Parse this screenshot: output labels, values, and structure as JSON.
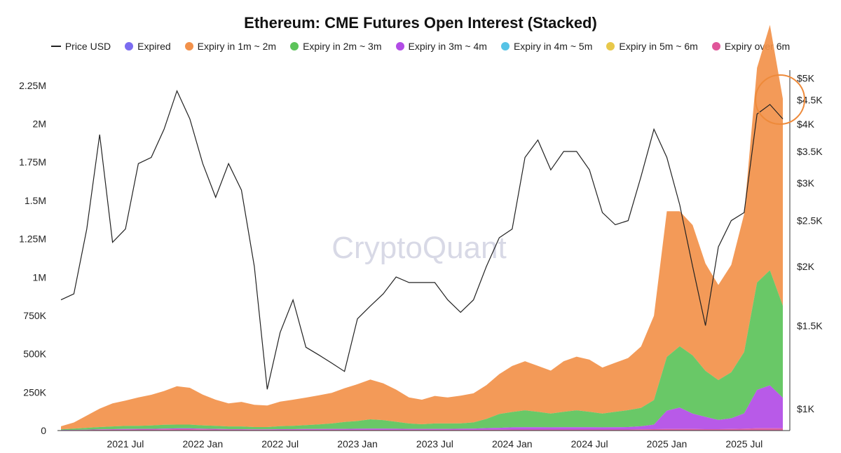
{
  "chart_data": {
    "type": "area",
    "title": "Ethereum: CME Futures Open Interest (Stacked)",
    "watermark": "CryptoQuant",
    "legend_position": "top",
    "grid": false,
    "x_range": [
      "2021-02",
      "2025-10"
    ],
    "x_ticks": [
      "2021 Jul",
      "2022 Jan",
      "2022 Jul",
      "2023 Jan",
      "2023 Jul",
      "2024 Jan",
      "2024 Jul",
      "2025 Jan",
      "2025 Jul"
    ],
    "y_left": {
      "range": [
        0,
        2350000
      ],
      "ticks": [
        {
          "value": 0,
          "label": "0"
        },
        {
          "value": 250000,
          "label": "250K"
        },
        {
          "value": 500000,
          "label": "500K"
        },
        {
          "value": 750000,
          "label": "750K"
        },
        {
          "value": 1000000,
          "label": "1M"
        },
        {
          "value": 1250000,
          "label": "1.25M"
        },
        {
          "value": 1500000,
          "label": "1.5M"
        },
        {
          "value": 1750000,
          "label": "1.75M"
        },
        {
          "value": 2000000,
          "label": "2M"
        },
        {
          "value": 2250000,
          "label": "2.25M"
        }
      ]
    },
    "y_right": {
      "scale": "log",
      "range": [
        900,
        5200
      ],
      "ticks": [
        {
          "value": 1000,
          "label": "$1K"
        },
        {
          "value": 1500,
          "label": "$1.5K"
        },
        {
          "value": 2000,
          "label": "$2K"
        },
        {
          "value": 2500,
          "label": "$2.5K"
        },
        {
          "value": 3000,
          "label": "$3K"
        },
        {
          "value": 3500,
          "label": "$3.5K"
        },
        {
          "value": 4000,
          "label": "$4K"
        },
        {
          "value": 4500,
          "label": "$4.5K"
        },
        {
          "value": 5000,
          "label": "$5K"
        }
      ]
    },
    "series_colors": {
      "price": "#222222",
      "expired": "#7b6cf0",
      "exp_1m_2m": "#f2914a",
      "exp_2m_3m": "#5cc35a",
      "exp_3m_4m": "#b24ce6",
      "exp_4m_5m": "#56c3e6",
      "exp_5m_6m": "#e8c84a",
      "exp_over_6m": "#e0569a"
    },
    "legend": [
      {
        "key": "price",
        "label": "Price USD",
        "kind": "line"
      },
      {
        "key": "expired",
        "label": "Expired",
        "kind": "dot"
      },
      {
        "key": "exp_1m_2m",
        "label": "Expiry in 1m ~ 2m",
        "kind": "dot"
      },
      {
        "key": "exp_2m_3m",
        "label": "Expiry in 2m ~ 3m",
        "kind": "dot"
      },
      {
        "key": "exp_3m_4m",
        "label": "Expiry in 3m ~ 4m",
        "kind": "dot"
      },
      {
        "key": "exp_4m_5m",
        "label": "Expiry in 4m ~ 5m",
        "kind": "dot"
      },
      {
        "key": "exp_5m_6m",
        "label": "Expiry in 5m ~ 6m",
        "kind": "dot"
      },
      {
        "key": "exp_over_6m",
        "label": "Expiry over 6m",
        "kind": "dot"
      }
    ],
    "x": [
      "2021-02",
      "2021-03",
      "2021-04",
      "2021-05",
      "2021-06",
      "2021-07",
      "2021-08",
      "2021-09",
      "2021-10",
      "2021-11",
      "2021-12",
      "2022-01",
      "2022-02",
      "2022-03",
      "2022-04",
      "2022-05",
      "2022-06",
      "2022-07",
      "2022-08",
      "2022-09",
      "2022-10",
      "2022-11",
      "2022-12",
      "2023-01",
      "2023-02",
      "2023-03",
      "2023-04",
      "2023-05",
      "2023-06",
      "2023-07",
      "2023-08",
      "2023-09",
      "2023-10",
      "2023-11",
      "2023-12",
      "2024-01",
      "2024-02",
      "2024-03",
      "2024-04",
      "2024-05",
      "2024-06",
      "2024-07",
      "2024-08",
      "2024-09",
      "2024-10",
      "2024-11",
      "2024-12",
      "2025-01",
      "2025-02",
      "2025-03",
      "2025-04",
      "2025-05",
      "2025-06",
      "2025-07",
      "2025-08",
      "2025-09",
      "2025-10"
    ],
    "series": [
      {
        "key": "price",
        "name": "Price USD",
        "axis": "right",
        "values": [
          1700,
          1750,
          2400,
          3800,
          2250,
          2400,
          3300,
          3400,
          3900,
          4700,
          4100,
          3300,
          2800,
          3300,
          2900,
          2000,
          1100,
          1450,
          1700,
          1350,
          1300,
          1250,
          1200,
          1550,
          1650,
          1750,
          1900,
          1850,
          1850,
          1850,
          1700,
          1600,
          1700,
          2000,
          2300,
          2400,
          3400,
          3700,
          3200,
          3500,
          3500,
          3200,
          2600,
          2450,
          2500,
          3100,
          3900,
          3400,
          2700,
          2000,
          1500,
          2200,
          2500,
          2600,
          4200,
          4400,
          4100
        ]
      },
      {
        "key": "exp_1m_2m",
        "name": "Expiry in 1m ~ 2m",
        "axis": "left",
        "values": [
          20000,
          40000,
          80000,
          120000,
          150000,
          165000,
          185000,
          200000,
          220000,
          250000,
          240000,
          200000,
          170000,
          150000,
          160000,
          145000,
          140000,
          160000,
          170000,
          180000,
          190000,
          200000,
          220000,
          240000,
          260000,
          240000,
          210000,
          170000,
          160000,
          180000,
          170000,
          180000,
          190000,
          220000,
          260000,
          300000,
          320000,
          300000,
          280000,
          330000,
          350000,
          340000,
          300000,
          320000,
          340000,
          400000,
          550000,
          950000,
          880000,
          850000,
          700000,
          620000,
          700000,
          900000,
          1400000,
          1600000,
          1350000
        ]
      },
      {
        "key": "exp_2m_3m",
        "name": "Expiry in 2m ~ 3m",
        "axis": "left",
        "values": [
          5000,
          8000,
          12000,
          15000,
          18000,
          20000,
          20000,
          22000,
          25000,
          25000,
          25000,
          22000,
          20000,
          18000,
          18000,
          15000,
          15000,
          20000,
          22000,
          25000,
          30000,
          35000,
          45000,
          50000,
          60000,
          55000,
          45000,
          35000,
          30000,
          35000,
          35000,
          35000,
          40000,
          60000,
          90000,
          100000,
          110000,
          100000,
          90000,
          100000,
          110000,
          100000,
          90000,
          100000,
          110000,
          120000,
          160000,
          350000,
          400000,
          380000,
          300000,
          260000,
          300000,
          400000,
          700000,
          750000,
          600000
        ]
      },
      {
        "key": "exp_3m_4m",
        "name": "Expiry in 3m ~ 4m",
        "axis": "left",
        "values": [
          1000,
          1500,
          2000,
          3000,
          3000,
          4000,
          4000,
          4000,
          5000,
          5000,
          5000,
          4000,
          4000,
          3000,
          3000,
          3000,
          3000,
          4000,
          4000,
          5000,
          5000,
          6000,
          6000,
          7000,
          8000,
          8000,
          7000,
          6000,
          6000,
          6000,
          6000,
          7000,
          8000,
          10000,
          12000,
          14000,
          15000,
          15000,
          14000,
          15000,
          15000,
          15000,
          14000,
          15000,
          16000,
          20000,
          30000,
          120000,
          140000,
          100000,
          80000,
          60000,
          70000,
          100000,
          250000,
          280000,
          200000
        ]
      },
      {
        "key": "exp_over_6m",
        "name": "Expiry over 6m",
        "axis": "left",
        "values": [
          2000,
          3000,
          4000,
          5000,
          6000,
          6000,
          7000,
          7000,
          8000,
          9000,
          9000,
          8000,
          7000,
          6000,
          6000,
          5000,
          5000,
          5000,
          5000,
          5000,
          5000,
          5000,
          5000,
          5000,
          5000,
          5000,
          5000,
          5000,
          5000,
          5000,
          5000,
          5000,
          5000,
          6000,
          6000,
          7000,
          7000,
          7000,
          7000,
          7000,
          7000,
          7000,
          7000,
          7000,
          7000,
          8000,
          9000,
          10000,
          10000,
          10000,
          9000,
          9000,
          10000,
          12000,
          15000,
          15000,
          14000
        ]
      }
    ]
  }
}
